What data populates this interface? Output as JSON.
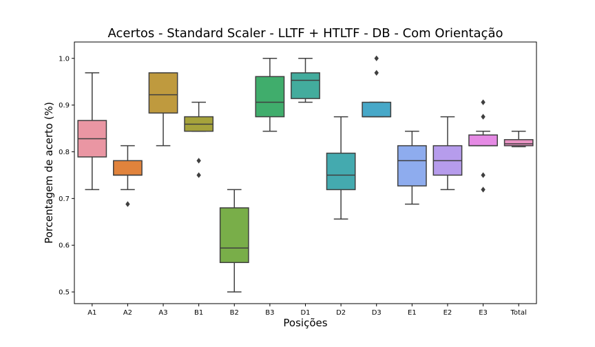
{
  "chart_data": {
    "type": "box",
    "title": "Acertos - Standard Scaler - LLTF + HTLTF - DB - Com Orientação",
    "xlabel": "Posições",
    "ylabel": "Porcentagem de acerto (%)",
    "ylim": [
      0.475,
      1.035
    ],
    "yticks": [
      "0.5",
      "0.6",
      "0.7",
      "0.8",
      "0.9",
      "1.0"
    ],
    "grid": false,
    "categories": [
      "A1",
      "A2",
      "A3",
      "B1",
      "B2",
      "B3",
      "D1",
      "D2",
      "D3",
      "E1",
      "E2",
      "E3",
      "Total"
    ],
    "boxes": [
      {
        "label": "A1",
        "color": "#ea96a3",
        "whisker_low": 0.719,
        "q1": 0.789,
        "median": 0.828,
        "q3": 0.867,
        "whisker_high": 0.969,
        "outliers": []
      },
      {
        "label": "A2",
        "color": "#e1833c",
        "whisker_low": 0.719,
        "q1": 0.75,
        "median": 0.75,
        "q3": 0.781,
        "whisker_high": 0.813,
        "outliers": [
          0.688
        ]
      },
      {
        "label": "A3",
        "color": "#bf9a3e",
        "whisker_low": 0.813,
        "q1": 0.883,
        "median": 0.922,
        "q3": 0.969,
        "whisker_high": 0.969,
        "outliers": []
      },
      {
        "label": "B1",
        "color": "#a6a33b",
        "whisker_low": 0.844,
        "q1": 0.844,
        "median": 0.859,
        "q3": 0.875,
        "whisker_high": 0.906,
        "outliers": [
          0.781,
          0.75
        ]
      },
      {
        "label": "B2",
        "color": "#79ae49",
        "whisker_low": 0.5,
        "q1": 0.563,
        "median": 0.594,
        "q3": 0.68,
        "whisker_high": 0.719,
        "outliers": []
      },
      {
        "label": "B3",
        "color": "#40ad6c",
        "whisker_low": 0.844,
        "q1": 0.875,
        "median": 0.906,
        "q3": 0.961,
        "whisker_high": 1.0,
        "outliers": []
      },
      {
        "label": "D1",
        "color": "#43ac9d",
        "whisker_low": 0.906,
        "q1": 0.914,
        "median": 0.953,
        "q3": 0.969,
        "whisker_high": 1.0,
        "outliers": []
      },
      {
        "label": "D2",
        "color": "#44aaaf",
        "whisker_low": 0.656,
        "q1": 0.719,
        "median": 0.75,
        "q3": 0.797,
        "whisker_high": 0.875,
        "outliers": []
      },
      {
        "label": "D3",
        "color": "#47a8c8",
        "whisker_low": 0.875,
        "q1": 0.875,
        "median": 0.875,
        "q3": 0.906,
        "whisker_high": 0.906,
        "outliers": [
          1.0,
          0.969
        ]
      },
      {
        "label": "E1",
        "color": "#8eacee",
        "whisker_low": 0.688,
        "q1": 0.727,
        "median": 0.781,
        "q3": 0.813,
        "whisker_high": 0.844,
        "outliers": []
      },
      {
        "label": "E2",
        "color": "#b69cec",
        "whisker_low": 0.719,
        "q1": 0.75,
        "median": 0.781,
        "q3": 0.813,
        "whisker_high": 0.875,
        "outliers": []
      },
      {
        "label": "E3",
        "color": "#e58ae4",
        "whisker_low": 0.813,
        "q1": 0.813,
        "median": 0.813,
        "q3": 0.836,
        "whisker_high": 0.844,
        "outliers": [
          0.906,
          0.875,
          0.75,
          0.719
        ]
      },
      {
        "label": "Total",
        "color": "#ea94c4",
        "whisker_low": 0.811,
        "q1": 0.813,
        "median": 0.817,
        "q3": 0.826,
        "whisker_high": 0.844,
        "outliers": []
      }
    ],
    "line_color": "#3f3f3f"
  }
}
